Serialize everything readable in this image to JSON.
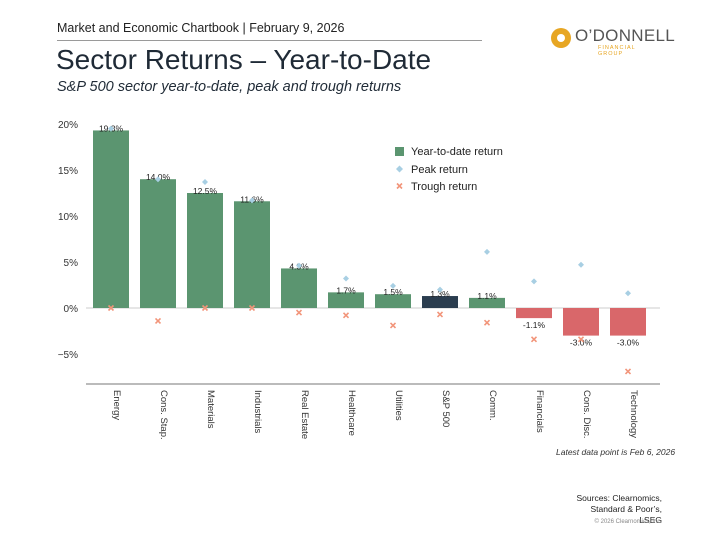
{
  "header": {
    "text": "Market and Economic Chartbook | February 9, 2026",
    "title": "Sector Returns – Year-to-Date",
    "subtitle": "S&P 500 sector year-to-date, peak and trough returns"
  },
  "logo": {
    "word": "O’DONNELL",
    "sub": "FINANCIAL GROUP",
    "icon": "odonnell-logo-icon"
  },
  "colors": {
    "positive": "#5b9570",
    "spx": "#2b3d4f",
    "negative": "#d9676a",
    "peak": "#a8cfe3",
    "trough": "#f2957a"
  },
  "chart_data": {
    "type": "bar",
    "categories": [
      "Energy",
      "Cons. Stap.",
      "Materials",
      "Industrials",
      "Real Estate",
      "Healthcare",
      "Utilities",
      "S&P 500",
      "Comm.",
      "Financials",
      "Cons. Disc.",
      "Technology"
    ],
    "series": [
      {
        "name": "Year-to-date return",
        "values": [
          19.3,
          14.0,
          12.5,
          11.6,
          4.3,
          1.7,
          1.5,
          1.3,
          1.1,
          -1.1,
          -3.0,
          -3.0
        ]
      },
      {
        "name": "Peak return",
        "values": [
          19.5,
          14.0,
          13.7,
          11.7,
          4.6,
          3.2,
          2.4,
          2.0,
          6.1,
          2.9,
          4.7,
          1.6
        ]
      },
      {
        "name": "Trough return",
        "values": [
          0.0,
          -1.4,
          0.0,
          0.0,
          -0.5,
          -0.8,
          -1.9,
          -0.7,
          -1.6,
          -3.4,
          -3.4,
          -6.9
        ]
      }
    ],
    "data_labels": [
      "19.3%",
      "14.0%",
      "12.5%",
      "11.6%",
      "4.3%",
      "1.7%",
      "1.5%",
      "1.3%",
      "1.1%",
      "-1.1%",
      "-3.0%",
      "-3.0%"
    ],
    "y_ticks": [
      "20%",
      "15%",
      "10%",
      "5%",
      "0%",
      "−5%"
    ],
    "ylim": [
      -8.5,
      20.5
    ],
    "grid": false,
    "legend": "top-right",
    "footnote": "Latest data point is Feb 6, 2026"
  },
  "footer": {
    "sources_lines": [
      "Sources: Clearnomics,",
      "Standard & Poor’s,",
      "LSEG"
    ],
    "copyright": "© 2026 Clearnomics, Inc."
  }
}
